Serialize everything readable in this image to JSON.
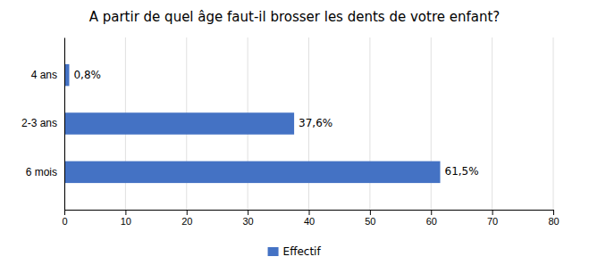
{
  "chart_data": {
    "type": "bar",
    "orientation": "horizontal",
    "title": "A partir de quel âge faut-il brosser les dents de votre enfant?",
    "categories": [
      "6 mois",
      "2-3 ans",
      "4 ans"
    ],
    "series": [
      {
        "name": "Effectif",
        "color": "#4472C4",
        "values": [
          61.5,
          37.6,
          0.8
        ],
        "value_labels": [
          "61,5%",
          "37,6%",
          "0,8%"
        ]
      }
    ],
    "xlim": [
      0,
      80
    ],
    "xticks": [
      0,
      10,
      20,
      30,
      40,
      50,
      60,
      70,
      80
    ],
    "grid": true,
    "legend": "bottom",
    "data_labels": true
  }
}
